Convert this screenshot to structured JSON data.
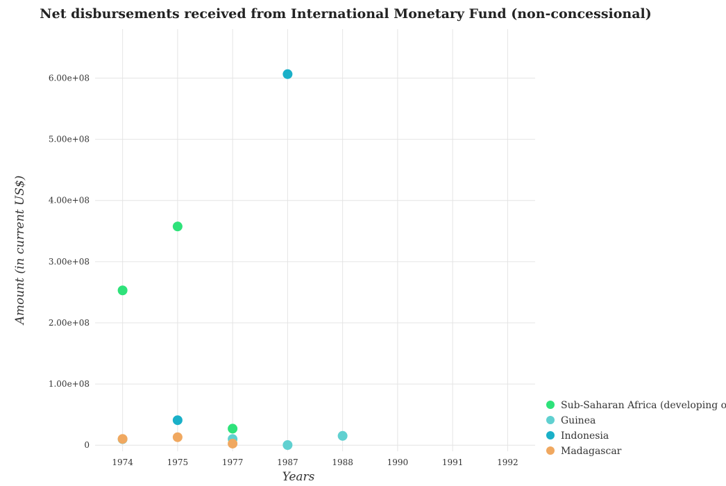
{
  "chart_data": {
    "type": "scatter",
    "title": "Net disbursements received from International Monetary Fund (non-concessional)",
    "xlabel": "Years",
    "ylabel": "Amount (in current US$)",
    "categories": [
      "1974",
      "1975",
      "1977",
      "1987",
      "1988",
      "1990",
      "1991",
      "1992"
    ],
    "yticks": [
      "0",
      "100000000",
      "200000000",
      "300000000",
      "400000000",
      "500000000",
      "600000000"
    ],
    "ytick_labels": [
      "0",
      "1.00e+08",
      "2.00e+08",
      "3.00e+08",
      "4.00e+08",
      "5.00e+08",
      "6.00e+08"
    ],
    "ylim": [
      -10000000,
      680000000
    ],
    "grid": true,
    "legend_position": "bottom-right",
    "series": [
      {
        "name": "Sub-Saharan Africa (developing only)",
        "color": "#2ee27a",
        "values": [
          253000000,
          357500000,
          27000000,
          null,
          null,
          null,
          null,
          null
        ]
      },
      {
        "name": "Guinea",
        "color": "#60d0d0",
        "values": [
          9800000,
          null,
          10000000,
          200000,
          15200000,
          null,
          null,
          null
        ]
      },
      {
        "name": "Indonesia",
        "color": "#1ab0c8",
        "values": [
          null,
          40800000,
          null,
          606500000,
          null,
          null,
          null,
          null
        ]
      },
      {
        "name": "Madagascar",
        "color": "#f0a860",
        "values": [
          10200000,
          13000000,
          2500000,
          null,
          null,
          null,
          null,
          null
        ]
      }
    ]
  }
}
